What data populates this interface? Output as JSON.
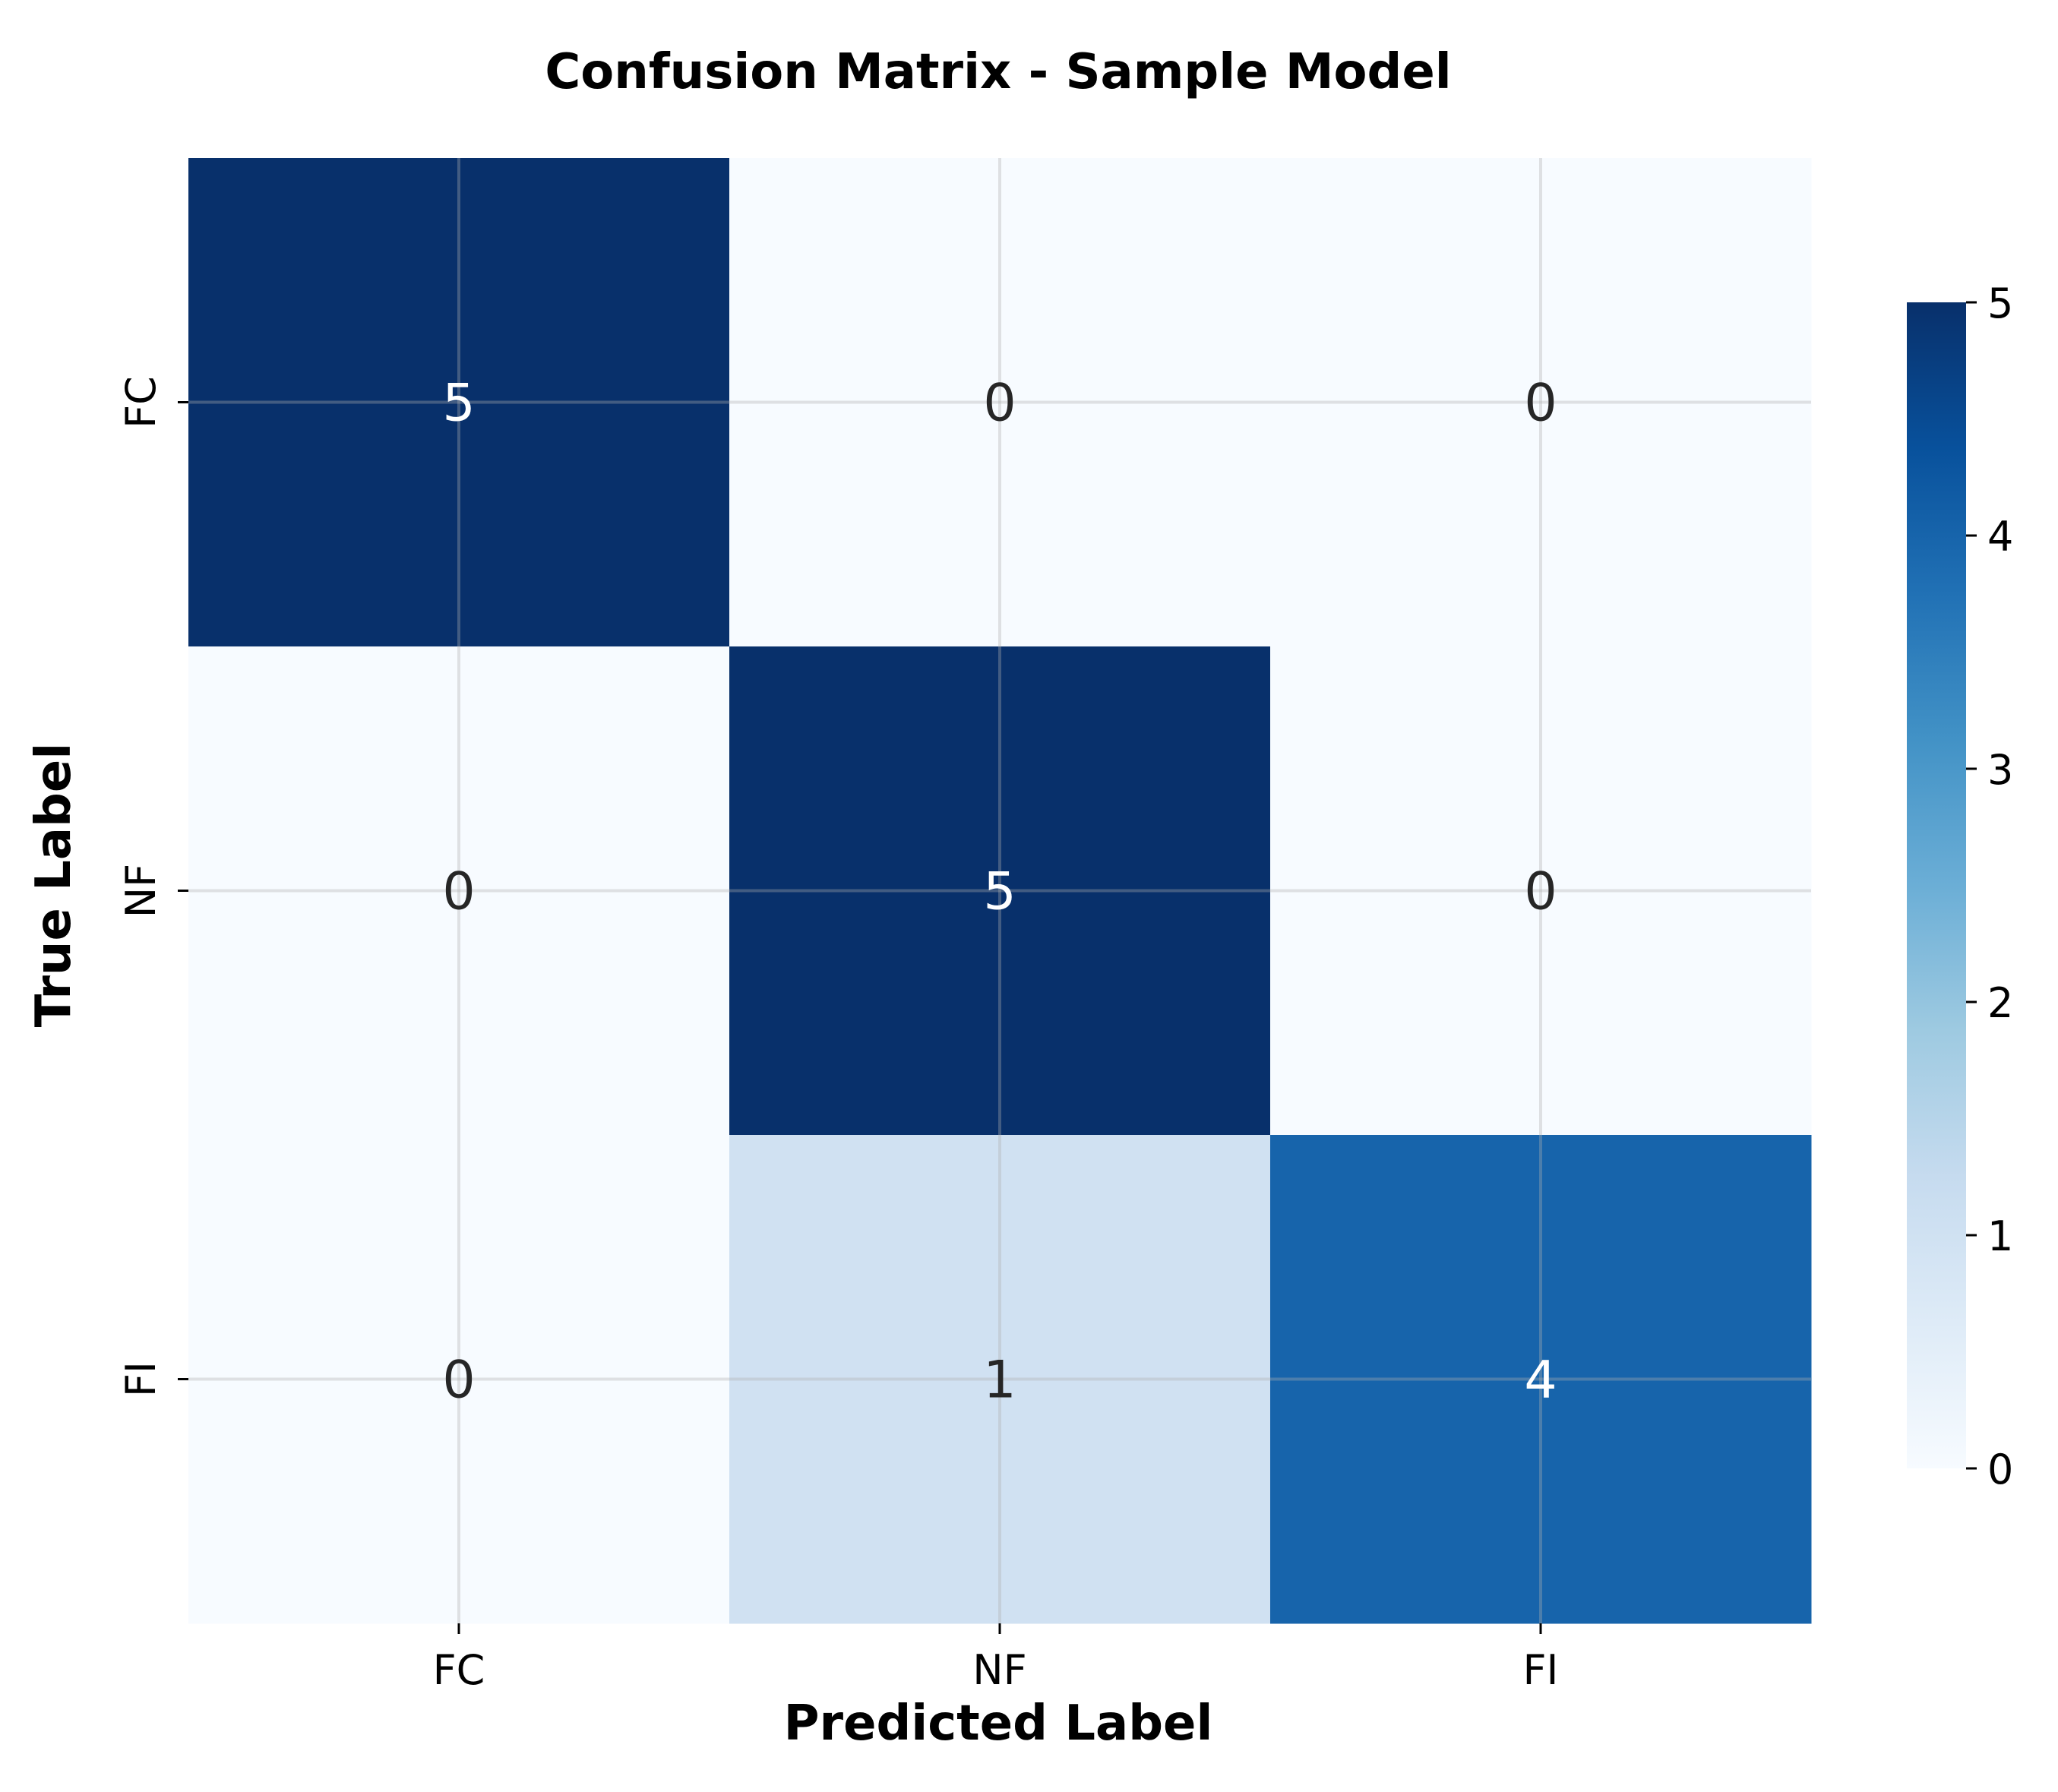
{
  "chart_data": {
    "type": "heatmap",
    "title": "Confusion Matrix - Sample Model",
    "xlabel": "Predicted Label",
    "ylabel": "True Label",
    "x_categories": [
      "FC",
      "NF",
      "FI"
    ],
    "y_categories": [
      "FC",
      "NF",
      "FI"
    ],
    "values": [
      [
        5,
        0,
        0
      ],
      [
        0,
        5,
        0
      ],
      [
        0,
        1,
        4
      ]
    ],
    "colormap": "Blues",
    "vmin": 0,
    "vmax": 5,
    "colorbar_ticks": [
      "0",
      "1",
      "2",
      "3",
      "4",
      "5"
    ],
    "grid": true
  }
}
